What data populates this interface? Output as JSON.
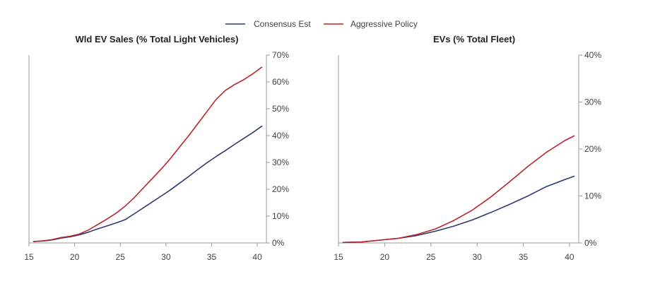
{
  "legend": [
    {
      "name": "Consensus Est",
      "color": "#2e3a6e"
    },
    {
      "name": "Aggressive Policy",
      "color": "#b8252d"
    }
  ],
  "chart_data": [
    {
      "type": "line",
      "title": "Wld EV Sales (% Total Light Vehicles)",
      "xlabel": "",
      "ylabel": "",
      "xlim": [
        15,
        41
      ],
      "ylim": [
        0,
        70
      ],
      "x_ticks": [
        15,
        20,
        25,
        30,
        35,
        40
      ],
      "x_tick_labels": [
        "15",
        "20",
        "25",
        "30",
        "35",
        "40"
      ],
      "y_ticks": [
        0,
        10,
        20,
        30,
        40,
        50,
        60,
        70
      ],
      "y_tick_labels": [
        "0%",
        "10%",
        "20%",
        "30%",
        "40%",
        "50%",
        "60%",
        "70%"
      ],
      "y_axis_side": "right",
      "grid": false,
      "legend_position": "top-center",
      "x": [
        15.5,
        16.5,
        17.5,
        18.5,
        19.5,
        20.5,
        21.5,
        22.5,
        23.5,
        24.5,
        25.5,
        26.5,
        27.5,
        28.5,
        29.5,
        30.5,
        31.5,
        32.5,
        33.5,
        34.5,
        35.5,
        36.5,
        37.5,
        38.5,
        39.5,
        40.5
      ],
      "series": [
        {
          "name": "Consensus Est",
          "color": "#2e3a6e",
          "values": [
            0.5,
            0.7,
            1.1,
            1.8,
            2.3,
            3.0,
            4.0,
            5.2,
            6.3,
            7.4,
            8.6,
            10.8,
            13.0,
            15.3,
            17.5,
            19.8,
            22.3,
            24.8,
            27.4,
            29.9,
            32.2,
            34.4,
            36.7,
            38.9,
            41.1,
            43.5
          ],
          "line_width": 1.6
        },
        {
          "name": "Aggressive Policy",
          "color": "#b8252d",
          "values": [
            0.5,
            0.8,
            1.2,
            2.0,
            2.5,
            3.3,
            4.8,
            6.8,
            8.8,
            11.0,
            13.6,
            16.8,
            20.4,
            24.0,
            27.6,
            31.5,
            35.8,
            40.0,
            44.5,
            49.0,
            53.5,
            56.8,
            59.0,
            60.8,
            63.0,
            65.5
          ],
          "line_width": 1.6
        }
      ]
    },
    {
      "type": "line",
      "title": "EVs (% Total Fleet)",
      "xlabel": "",
      "ylabel": "",
      "xlim": [
        15,
        41
      ],
      "ylim": [
        0,
        40
      ],
      "x_ticks": [
        15,
        20,
        25,
        30,
        35,
        40
      ],
      "x_tick_labels": [
        "15",
        "20",
        "25",
        "30",
        "35",
        "40"
      ],
      "y_ticks": [
        0,
        10,
        20,
        30,
        40
      ],
      "y_tick_labels": [
        "0%",
        "10%",
        "20%",
        "30%",
        "40%"
      ],
      "y_axis_side": "right",
      "grid": false,
      "x": [
        15.5,
        17.5,
        19.5,
        21.5,
        23.5,
        25.5,
        27.5,
        29.5,
        31.5,
        33.5,
        35.5,
        37.5,
        39.5,
        40.5
      ],
      "series": [
        {
          "name": "Consensus Est",
          "color": "#2e3a6e",
          "values": [
            0.1,
            0.2,
            0.6,
            1.0,
            1.6,
            2.5,
            3.6,
            4.9,
            6.5,
            8.2,
            10.0,
            12.0,
            13.5,
            14.2
          ],
          "line_width": 1.6
        },
        {
          "name": "Aggressive Policy",
          "color": "#b8252d",
          "values": [
            0.1,
            0.2,
            0.6,
            1.0,
            1.8,
            3.0,
            4.8,
            7.0,
            9.8,
            13.0,
            16.3,
            19.3,
            21.8,
            22.8
          ],
          "line_width": 1.6
        }
      ]
    }
  ]
}
